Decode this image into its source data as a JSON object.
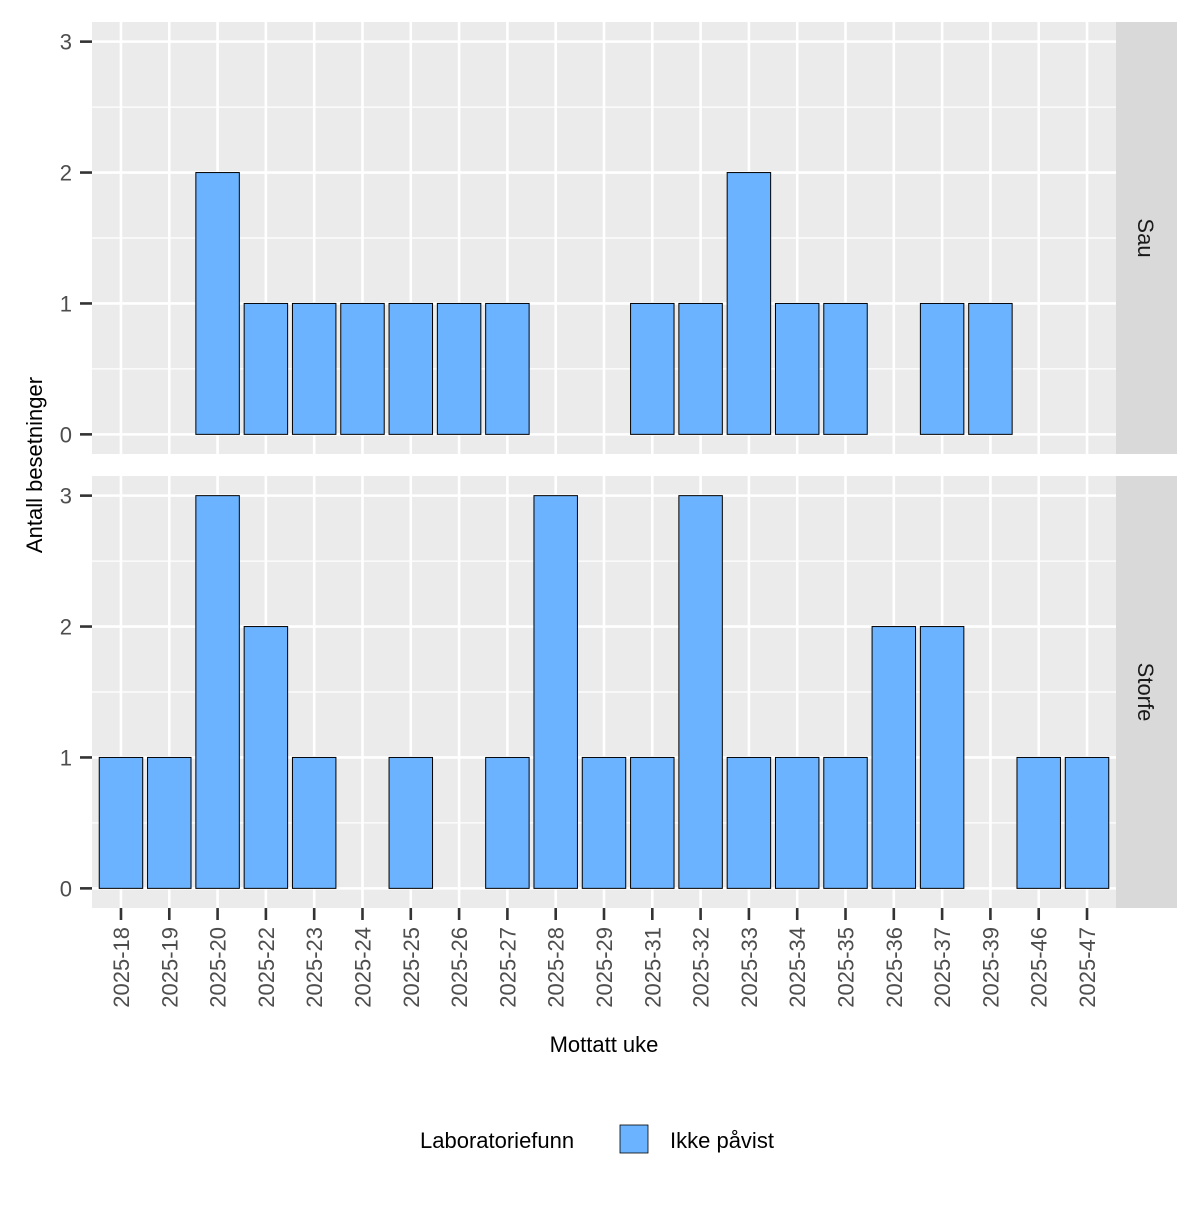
{
  "chart_data": {
    "type": "bar",
    "xlabel": "Mottatt uke",
    "ylabel": "Antall besetninger",
    "ylim": [
      0,
      3
    ],
    "yticks": [
      "0",
      "1",
      "2",
      "3"
    ],
    "grid": true,
    "legend": {
      "title": "Laboratoriefunn",
      "placement": "bottom",
      "entries": [
        {
          "label": "Ikke påvist",
          "color": "#6BB3FF"
        }
      ]
    },
    "categories": [
      "2025-18",
      "2025-19",
      "2025-20",
      "2025-22",
      "2025-23",
      "2025-24",
      "2025-25",
      "2025-26",
      "2025-27",
      "2025-28",
      "2025-29",
      "2025-31",
      "2025-32",
      "2025-33",
      "2025-34",
      "2025-35",
      "2025-36",
      "2025-37",
      "2025-39",
      "2025-46",
      "2025-47"
    ],
    "facets": [
      {
        "name": "Sau",
        "values": [
          0,
          0,
          2,
          1,
          1,
          1,
          1,
          1,
          1,
          0,
          0,
          1,
          1,
          2,
          1,
          1,
          0,
          1,
          1,
          0,
          0
        ]
      },
      {
        "name": "Storfe",
        "values": [
          1,
          1,
          3,
          2,
          1,
          0,
          1,
          0,
          1,
          3,
          1,
          1,
          3,
          1,
          1,
          1,
          2,
          2,
          0,
          1,
          1
        ]
      }
    ]
  }
}
